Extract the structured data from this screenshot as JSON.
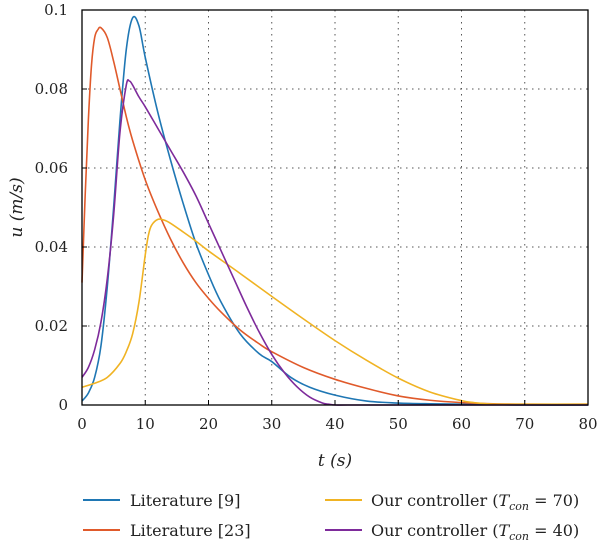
{
  "chart_data": {
    "type": "line",
    "title": "",
    "xlabel": "t (s)",
    "ylabel": "u (m/s)",
    "xlim": [
      0,
      80
    ],
    "ylim": [
      0,
      0.1
    ],
    "xticks": [
      "0",
      "10",
      "20",
      "30",
      "40",
      "50",
      "60",
      "70",
      "80"
    ],
    "yticks": [
      "0",
      "0.02",
      "0.04",
      "0.06",
      "0.08",
      "0.1"
    ],
    "grid": true,
    "legend_position": "bottom",
    "series": [
      {
        "name": "Literature [9]",
        "color": "#1f77b4",
        "x": [
          0,
          1,
          2,
          3,
          4,
          5,
          6,
          7,
          8,
          9,
          10,
          12,
          14,
          16,
          18,
          20,
          22,
          25,
          28,
          30,
          33,
          36,
          40,
          45,
          50,
          55,
          60,
          65,
          70,
          80
        ],
        "y": [
          0.001,
          0.003,
          0.007,
          0.015,
          0.03,
          0.05,
          0.072,
          0.09,
          0.098,
          0.096,
          0.088,
          0.074,
          0.062,
          0.051,
          0.041,
          0.033,
          0.026,
          0.018,
          0.013,
          0.011,
          0.007,
          0.0045,
          0.0025,
          0.001,
          0.0005,
          0.0003,
          0.0002,
          0.0001,
          0,
          0
        ]
      },
      {
        "name": "Literature [23]",
        "color": "#e05a2b",
        "x": [
          0,
          0.5,
          1,
          1.5,
          2,
          2.5,
          3,
          4,
          5,
          6,
          7,
          8,
          10,
          12,
          14,
          16,
          18,
          20,
          22,
          25,
          28,
          30,
          35,
          40,
          45,
          50,
          55,
          60,
          65,
          70,
          80
        ],
        "y": [
          0.031,
          0.053,
          0.072,
          0.086,
          0.093,
          0.095,
          0.0955,
          0.093,
          0.087,
          0.08,
          0.073,
          0.067,
          0.057,
          0.049,
          0.042,
          0.036,
          0.031,
          0.027,
          0.0235,
          0.019,
          0.0155,
          0.0135,
          0.0095,
          0.0065,
          0.0042,
          0.0023,
          0.0012,
          0.0006,
          0.0003,
          0.0002,
          0.0002
        ]
      },
      {
        "name": "Our controller (T_con = 70)",
        "color": "#f0b323",
        "x": [
          0,
          2,
          4,
          6,
          7,
          8,
          9,
          10,
          10.5,
          11,
          12,
          13,
          14,
          16,
          18,
          20,
          25,
          30,
          35,
          40,
          45,
          50,
          55,
          60,
          62,
          64,
          66,
          70,
          80
        ],
        "y": [
          0.0045,
          0.0055,
          0.007,
          0.0105,
          0.0135,
          0.018,
          0.026,
          0.038,
          0.043,
          0.0455,
          0.047,
          0.0468,
          0.046,
          0.0438,
          0.0415,
          0.039,
          0.0333,
          0.0275,
          0.0218,
          0.0163,
          0.0113,
          0.0068,
          0.0033,
          0.0011,
          0.0006,
          0.0003,
          0.0002,
          0.0002,
          0.0002
        ]
      },
      {
        "name": "Our controller (T_con = 40)",
        "color": "#7e2b9b",
        "x": [
          0,
          1,
          2,
          3,
          4,
          5,
          6,
          7,
          7.5,
          8,
          9,
          10,
          12,
          14,
          16,
          18,
          20,
          22,
          24,
          26,
          28,
          30,
          32,
          34,
          36,
          38,
          39,
          40,
          42,
          50,
          60,
          70,
          80
        ],
        "y": [
          0.007,
          0.0095,
          0.014,
          0.021,
          0.032,
          0.048,
          0.069,
          0.081,
          0.082,
          0.081,
          0.078,
          0.0755,
          0.07,
          0.0645,
          0.059,
          0.053,
          0.046,
          0.039,
          0.032,
          0.025,
          0.0185,
          0.0128,
          0.0082,
          0.0046,
          0.002,
          0.0005,
          0.0002,
          0,
          0,
          0,
          0,
          0,
          0
        ]
      }
    ]
  }
}
